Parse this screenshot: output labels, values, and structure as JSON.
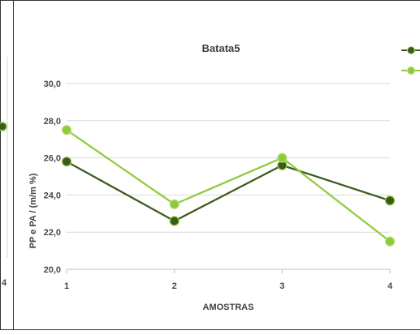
{
  "chart_data": {
    "type": "line",
    "title": "Batata5",
    "xlabel": "AMOSTRAS",
    "ylabel": "PP e PA / (m/m %)",
    "categories": [
      "1",
      "2",
      "3",
      "4"
    ],
    "yticks": [
      "20,0",
      "22,0",
      "24,0",
      "26,0",
      "28,0",
      "30,0"
    ],
    "ylim": [
      20,
      30
    ],
    "grid": true,
    "legend_position": "right",
    "series": [
      {
        "color": "#3b5a1e",
        "values": [
          25.8,
          22.6,
          25.6,
          23.7
        ]
      },
      {
        "color": "#8fca3c",
        "values": [
          27.5,
          23.5,
          26.0,
          21.5
        ]
      }
    ]
  },
  "left_fragment": {
    "tick_label": "4"
  }
}
